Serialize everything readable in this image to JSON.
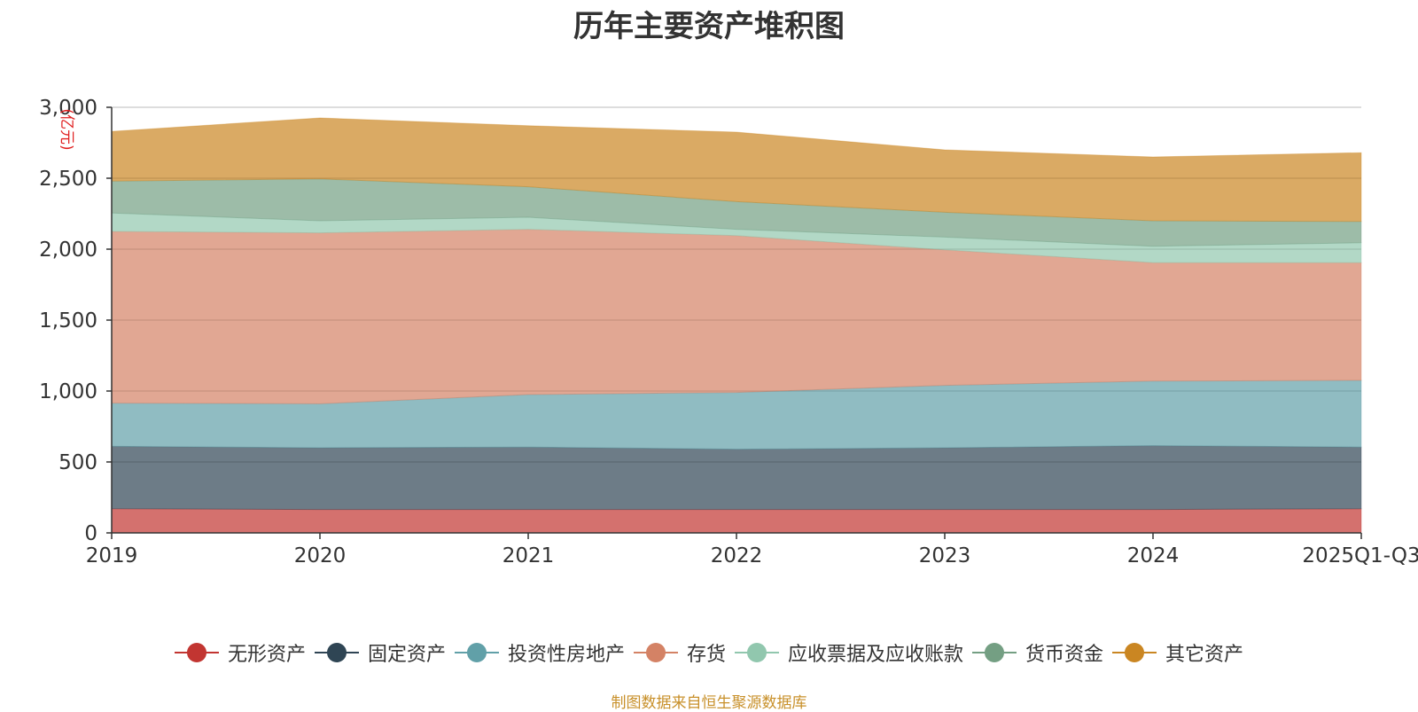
{
  "chart_data": {
    "type": "area",
    "stacked": true,
    "title": "历年主要资产堆积图",
    "ylabel": "(亿元)",
    "xlabel": "",
    "ylim": [
      0,
      3000
    ],
    "yticks": [
      0,
      500,
      1000,
      1500,
      2000,
      2500,
      3000
    ],
    "ytick_labels": [
      "0",
      "500",
      "1,000",
      "1,500",
      "2,000",
      "2,500",
      "3,000"
    ],
    "categories": [
      "2019",
      "2020",
      "2021",
      "2022",
      "2023",
      "2024",
      "2025Q1-Q3"
    ],
    "legend_position": "bottom",
    "series": [
      {
        "name": "无形资产",
        "color": "#c23531",
        "values": [
          170,
          165,
          165,
          165,
          165,
          165,
          170
        ]
      },
      {
        "name": "固定资产",
        "color": "#2f4554",
        "values": [
          440,
          435,
          440,
          425,
          435,
          450,
          435
        ]
      },
      {
        "name": "投资性房地产",
        "color": "#61a0a8",
        "values": [
          305,
          310,
          370,
          400,
          440,
          455,
          470
        ]
      },
      {
        "name": "存货",
        "color": "#d48265",
        "values": [
          1210,
          1205,
          1165,
          1105,
          955,
          835,
          830
        ]
      },
      {
        "name": "应收票据及应收账款",
        "color": "#91c7ae",
        "values": [
          130,
          85,
          85,
          45,
          90,
          115,
          140
        ]
      },
      {
        "name": "货币资金",
        "color": "#749f83",
        "values": [
          225,
          295,
          215,
          195,
          175,
          180,
          150
        ]
      },
      {
        "name": "其它资产",
        "color": "#ca8622",
        "values": [
          350,
          430,
          430,
          490,
          440,
          450,
          485
        ]
      }
    ]
  },
  "source_note": "制图数据来自恒生聚源数据库"
}
